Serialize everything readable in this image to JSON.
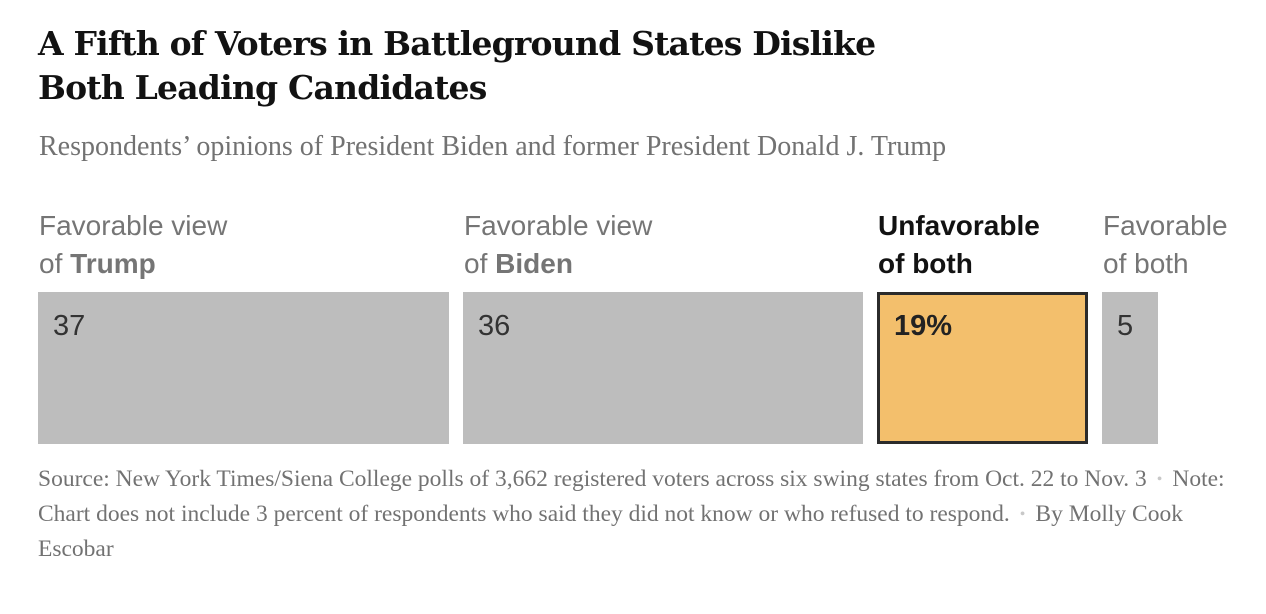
{
  "title_lines": [
    "A Fifth of Voters in Battleground States Dislike",
    "Both Leading Candidates"
  ],
  "subtitle": "Respondents’ opinions of President Biden and former President Donald J. Trump",
  "chart_data": {
    "type": "bar",
    "orientation": "horizontal-stacked",
    "categories": [
      {
        "line1": "Favorable view",
        "line2_prefix": "of ",
        "line2_strong": "Trump",
        "value": 37,
        "value_label": "37",
        "highlight": false
      },
      {
        "line1": "Favorable view",
        "line2_prefix": "of ",
        "line2_strong": "Biden",
        "value": 36,
        "value_label": "36",
        "highlight": false
      },
      {
        "line1": "Unfavorable",
        "line2_prefix": "of both",
        "line2_strong": "",
        "value": 19,
        "value_label": "19%",
        "highlight": true
      },
      {
        "line1": "Favorable",
        "line2_prefix": "of both",
        "line2_strong": "",
        "value": 5,
        "value_label": "5",
        "highlight": false
      }
    ],
    "colors": {
      "base": "#bdbdbd",
      "highlight": "#f3bf6c",
      "highlight_border": "#2b2b2b"
    }
  },
  "footer": {
    "source": "Source: New York Times/Siena College polls of 3,662 registered voters across six swing states from Oct. 22 to Nov. 3",
    "note": "Note: Chart does not include 3 percent of respondents who said they did not know or who refused to respond.",
    "byline": "By Molly Cook Escobar",
    "separator": "•"
  }
}
